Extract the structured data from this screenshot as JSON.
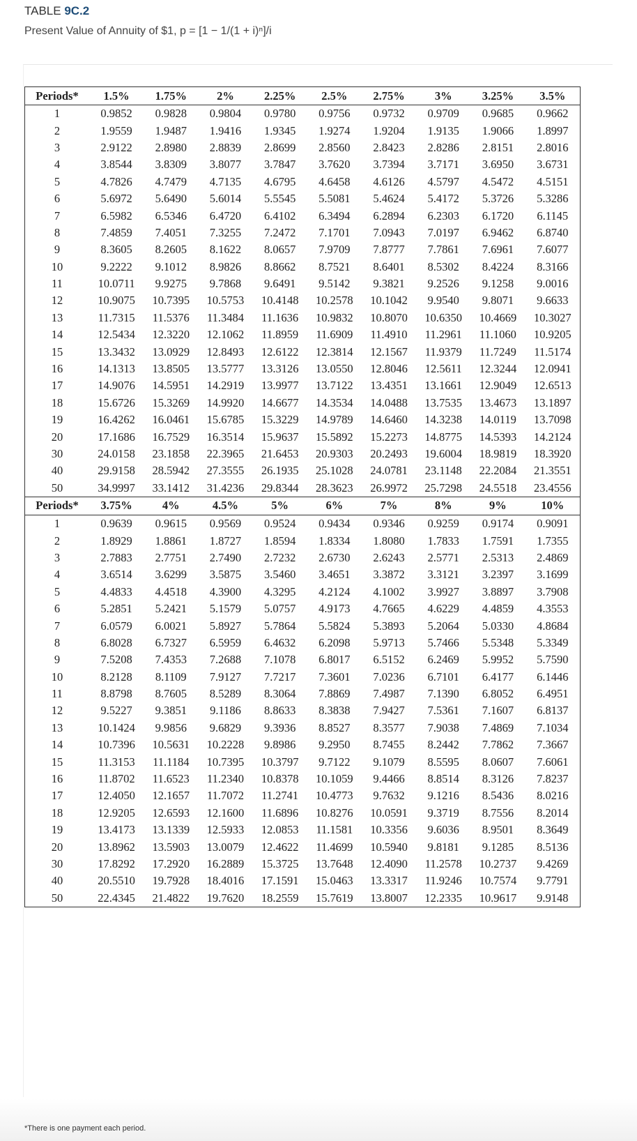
{
  "title_prefix": "TABLE ",
  "title_number": "9C.2",
  "subtitle": "Present Value of Annuity of $1, p = [1 − 1/(1 + i)ⁿ]/i",
  "footnote": "*There is one payment each period.",
  "accent_color": "#1f4e79",
  "periods_label": "Periods*",
  "periods": [
    "1",
    "2",
    "3",
    "4",
    "5",
    "6",
    "7",
    "8",
    "9",
    "10",
    "11",
    "12",
    "13",
    "14",
    "15",
    "16",
    "17",
    "18",
    "19",
    "20",
    "30",
    "40",
    "50"
  ],
  "sections": [
    {
      "rates": [
        "1.5%",
        "1.75%",
        "2%",
        "2.25%",
        "2.5%",
        "2.75%",
        "3%",
        "3.25%",
        "3.5%"
      ],
      "rows": [
        [
          "0.9852",
          "0.9828",
          "0.9804",
          "0.9780",
          "0.9756",
          "0.9732",
          "0.9709",
          "0.9685",
          "0.9662"
        ],
        [
          "1.9559",
          "1.9487",
          "1.9416",
          "1.9345",
          "1.9274",
          "1.9204",
          "1.9135",
          "1.9066",
          "1.8997"
        ],
        [
          "2.9122",
          "2.8980",
          "2.8839",
          "2.8699",
          "2.8560",
          "2.8423",
          "2.8286",
          "2.8151",
          "2.8016"
        ],
        [
          "3.8544",
          "3.8309",
          "3.8077",
          "3.7847",
          "3.7620",
          "3.7394",
          "3.7171",
          "3.6950",
          "3.6731"
        ],
        [
          "4.7826",
          "4.7479",
          "4.7135",
          "4.6795",
          "4.6458",
          "4.6126",
          "4.5797",
          "4.5472",
          "4.5151"
        ],
        [
          "5.6972",
          "5.6490",
          "5.6014",
          "5.5545",
          "5.5081",
          "5.4624",
          "5.4172",
          "5.3726",
          "5.3286"
        ],
        [
          "6.5982",
          "6.5346",
          "6.4720",
          "6.4102",
          "6.3494",
          "6.2894",
          "6.2303",
          "6.1720",
          "6.1145"
        ],
        [
          "7.4859",
          "7.4051",
          "7.3255",
          "7.2472",
          "7.1701",
          "7.0943",
          "7.0197",
          "6.9462",
          "6.8740"
        ],
        [
          "8.3605",
          "8.2605",
          "8.1622",
          "8.0657",
          "7.9709",
          "7.8777",
          "7.7861",
          "7.6961",
          "7.6077"
        ],
        [
          "9.2222",
          "9.1012",
          "8.9826",
          "8.8662",
          "8.7521",
          "8.6401",
          "8.5302",
          "8.4224",
          "8.3166"
        ],
        [
          "10.0711",
          "9.9275",
          "9.7868",
          "9.6491",
          "9.5142",
          "9.3821",
          "9.2526",
          "9.1258",
          "9.0016"
        ],
        [
          "10.9075",
          "10.7395",
          "10.5753",
          "10.4148",
          "10.2578",
          "10.1042",
          "9.9540",
          "9.8071",
          "9.6633"
        ],
        [
          "11.7315",
          "11.5376",
          "11.3484",
          "11.1636",
          "10.9832",
          "10.8070",
          "10.6350",
          "10.4669",
          "10.3027"
        ],
        [
          "12.5434",
          "12.3220",
          "12.1062",
          "11.8959",
          "11.6909",
          "11.4910",
          "11.2961",
          "11.1060",
          "10.9205"
        ],
        [
          "13.3432",
          "13.0929",
          "12.8493",
          "12.6122",
          "12.3814",
          "12.1567",
          "11.9379",
          "11.7249",
          "11.5174"
        ],
        [
          "14.1313",
          "13.8505",
          "13.5777",
          "13.3126",
          "13.0550",
          "12.8046",
          "12.5611",
          "12.3244",
          "12.0941"
        ],
        [
          "14.9076",
          "14.5951",
          "14.2919",
          "13.9977",
          "13.7122",
          "13.4351",
          "13.1661",
          "12.9049",
          "12.6513"
        ],
        [
          "15.6726",
          "15.3269",
          "14.9920",
          "14.6677",
          "14.3534",
          "14.0488",
          "13.7535",
          "13.4673",
          "13.1897"
        ],
        [
          "16.4262",
          "16.0461",
          "15.6785",
          "15.3229",
          "14.9789",
          "14.6460",
          "14.3238",
          "14.0119",
          "13.7098"
        ],
        [
          "17.1686",
          "16.7529",
          "16.3514",
          "15.9637",
          "15.5892",
          "15.2273",
          "14.8775",
          "14.5393",
          "14.2124"
        ],
        [
          "24.0158",
          "23.1858",
          "22.3965",
          "21.6453",
          "20.9303",
          "20.2493",
          "19.6004",
          "18.9819",
          "18.3920"
        ],
        [
          "29.9158",
          "28.5942",
          "27.3555",
          "26.1935",
          "25.1028",
          "24.0781",
          "23.1148",
          "22.2084",
          "21.3551"
        ],
        [
          "34.9997",
          "33.1412",
          "31.4236",
          "29.8344",
          "28.3623",
          "26.9972",
          "25.7298",
          "24.5518",
          "23.4556"
        ]
      ]
    },
    {
      "rates": [
        "3.75%",
        "4%",
        "4.5%",
        "5%",
        "6%",
        "7%",
        "8%",
        "9%",
        "10%"
      ],
      "rows": [
        [
          "0.9639",
          "0.9615",
          "0.9569",
          "0.9524",
          "0.9434",
          "0.9346",
          "0.9259",
          "0.9174",
          "0.9091"
        ],
        [
          "1.8929",
          "1.8861",
          "1.8727",
          "1.8594",
          "1.8334",
          "1.8080",
          "1.7833",
          "1.7591",
          "1.7355"
        ],
        [
          "2.7883",
          "2.7751",
          "2.7490",
          "2.7232",
          "2.6730",
          "2.6243",
          "2.5771",
          "2.5313",
          "2.4869"
        ],
        [
          "3.6514",
          "3.6299",
          "3.5875",
          "3.5460",
          "3.4651",
          "3.3872",
          "3.3121",
          "3.2397",
          "3.1699"
        ],
        [
          "4.4833",
          "4.4518",
          "4.3900",
          "4.3295",
          "4.2124",
          "4.1002",
          "3.9927",
          "3.8897",
          "3.7908"
        ],
        [
          "5.2851",
          "5.2421",
          "5.1579",
          "5.0757",
          "4.9173",
          "4.7665",
          "4.6229",
          "4.4859",
          "4.3553"
        ],
        [
          "6.0579",
          "6.0021",
          "5.8927",
          "5.7864",
          "5.5824",
          "5.3893",
          "5.2064",
          "5.0330",
          "4.8684"
        ],
        [
          "6.8028",
          "6.7327",
          "6.5959",
          "6.4632",
          "6.2098",
          "5.9713",
          "5.7466",
          "5.5348",
          "5.3349"
        ],
        [
          "7.5208",
          "7.4353",
          "7.2688",
          "7.1078",
          "6.8017",
          "6.5152",
          "6.2469",
          "5.9952",
          "5.7590"
        ],
        [
          "8.2128",
          "8.1109",
          "7.9127",
          "7.7217",
          "7.3601",
          "7.0236",
          "6.7101",
          "6.4177",
          "6.1446"
        ],
        [
          "8.8798",
          "8.7605",
          "8.5289",
          "8.3064",
          "7.8869",
          "7.4987",
          "7.1390",
          "6.8052",
          "6.4951"
        ],
        [
          "9.5227",
          "9.3851",
          "9.1186",
          "8.8633",
          "8.3838",
          "7.9427",
          "7.5361",
          "7.1607",
          "6.8137"
        ],
        [
          "10.1424",
          "9.9856",
          "9.6829",
          "9.3936",
          "8.8527",
          "8.3577",
          "7.9038",
          "7.4869",
          "7.1034"
        ],
        [
          "10.7396",
          "10.5631",
          "10.2228",
          "9.8986",
          "9.2950",
          "8.7455",
          "8.2442",
          "7.7862",
          "7.3667"
        ],
        [
          "11.3153",
          "11.1184",
          "10.7395",
          "10.3797",
          "9.7122",
          "9.1079",
          "8.5595",
          "8.0607",
          "7.6061"
        ],
        [
          "11.8702",
          "11.6523",
          "11.2340",
          "10.8378",
          "10.1059",
          "9.4466",
          "8.8514",
          "8.3126",
          "7.8237"
        ],
        [
          "12.4050",
          "12.1657",
          "11.7072",
          "11.2741",
          "10.4773",
          "9.7632",
          "9.1216",
          "8.5436",
          "8.0216"
        ],
        [
          "12.9205",
          "12.6593",
          "12.1600",
          "11.6896",
          "10.8276",
          "10.0591",
          "9.3719",
          "8.7556",
          "8.2014"
        ],
        [
          "13.4173",
          "13.1339",
          "12.5933",
          "12.0853",
          "11.1581",
          "10.3356",
          "9.6036",
          "8.9501",
          "8.3649"
        ],
        [
          "13.8962",
          "13.5903",
          "13.0079",
          "12.4622",
          "11.4699",
          "10.5940",
          "9.8181",
          "9.1285",
          "8.5136"
        ],
        [
          "17.8292",
          "17.2920",
          "16.2889",
          "15.3725",
          "13.7648",
          "12.4090",
          "11.2578",
          "10.2737",
          "9.4269"
        ],
        [
          "20.5510",
          "19.7928",
          "18.4016",
          "17.1591",
          "15.0463",
          "13.3317",
          "11.9246",
          "10.7574",
          "9.7791"
        ],
        [
          "22.4345",
          "21.4822",
          "19.7620",
          "18.2559",
          "15.7619",
          "13.8007",
          "12.2335",
          "10.9617",
          "9.9148"
        ]
      ]
    }
  ]
}
